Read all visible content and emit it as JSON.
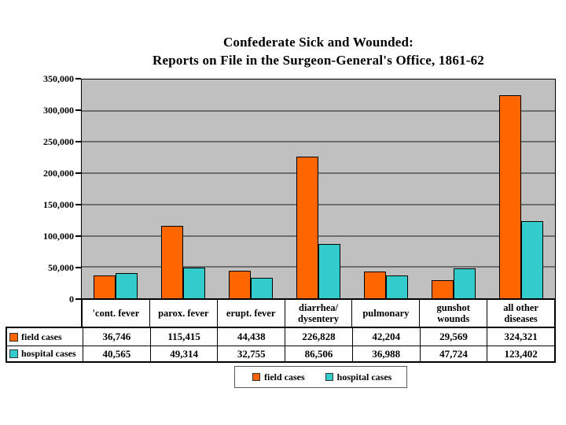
{
  "title": {
    "line1": "Confederate Sick and Wounded:",
    "line2": "Reports on File in the Surgeon-General's Office, 1861-62"
  },
  "chart_data": {
    "type": "bar",
    "title": "Confederate Sick and Wounded: Reports on File in the Surgeon-General's Office, 1861-62",
    "categories": [
      "'cont. fever",
      "parox. fever",
      "erupt. fever",
      "diarrhea/dysentery",
      "pulmonary",
      "gunshot wounds",
      "all other diseases"
    ],
    "series": [
      {
        "name": "field cases",
        "color": "#FF6600",
        "values": [
          36746,
          115415,
          44438,
          226828,
          42204,
          29569,
          324321
        ]
      },
      {
        "name": "hospital cases",
        "color": "#33CCCC",
        "values": [
          40565,
          49314,
          32755,
          86506,
          36988,
          47724,
          123402
        ]
      }
    ],
    "xlabel": "",
    "ylabel": "",
    "ylim": [
      0,
      350000
    ],
    "ytick_step": 50000,
    "ytick_labels": [
      "350,000",
      "300,000",
      "250,000",
      "200,000",
      "150,000",
      "100,000",
      "50,000",
      "0"
    ],
    "grid": true,
    "legend_position": "bottom",
    "plot_background": "#C0C0C0",
    "gridline_color": "#6e6e6e"
  },
  "table": {
    "col_headers": [
      "'cont. fever",
      "parox. fever",
      "erupt. fever",
      "diarrhea/\ndysentery",
      "pulmonary",
      "gunshot\nwounds",
      "all other\ndiseases"
    ],
    "rows": [
      {
        "label": "field cases",
        "swatch_color": "#FF6600",
        "values": [
          "36,746",
          "115,415",
          "44,438",
          "226,828",
          "42,204",
          "29,569",
          "324,321"
        ]
      },
      {
        "label": "hospital cases",
        "swatch_color": "#33CCCC",
        "values": [
          "40,565",
          "49,314",
          "32,755",
          "86,506",
          "36,988",
          "47,724",
          "123,402"
        ]
      }
    ]
  },
  "legend": {
    "items": [
      {
        "label": "field cases",
        "color": "#FF6600"
      },
      {
        "label": "hospital cases",
        "color": "#33CCCC"
      }
    ]
  }
}
